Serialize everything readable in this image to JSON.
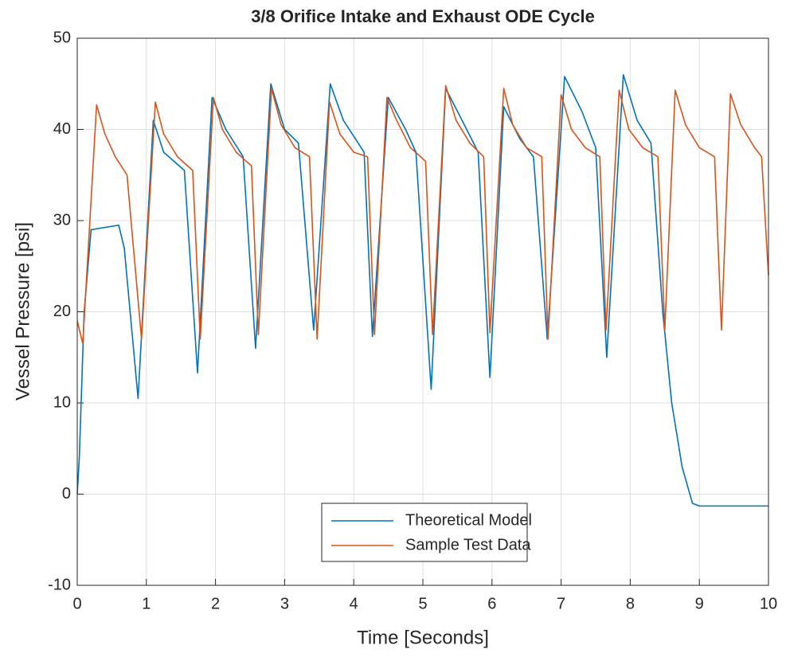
{
  "chart_data": {
    "type": "line",
    "title": "3/8 Orifice Intake and Exhaust ODE Cycle",
    "xlabel": "Time [Seconds]",
    "ylabel": "Vessel Pressure [psi]",
    "xlim": [
      0,
      10
    ],
    "xticks": [
      0,
      1,
      2,
      3,
      4,
      5,
      6,
      7,
      8,
      9,
      10
    ],
    "ylim": [
      -10,
      50
    ],
    "yticks": [
      -10,
      0,
      10,
      20,
      30,
      40,
      50
    ],
    "grid": true,
    "legend": "south",
    "series": [
      {
        "name": "Theoretical Model",
        "color": "#0072bd",
        "x": [
          0,
          0.03,
          0.1,
          0.2,
          0.6,
          0.68,
          0.88,
          1.1,
          1.25,
          1.55,
          1.74,
          1.95,
          2.15,
          2.4,
          2.58,
          2.8,
          3.0,
          3.2,
          3.42,
          3.66,
          3.85,
          4.15,
          4.27,
          4.5,
          4.75,
          4.9,
          5.12,
          5.33,
          5.6,
          5.8,
          5.97,
          6.17,
          6.4,
          6.6,
          6.8,
          7.05,
          7.3,
          7.5,
          7.66,
          7.9,
          8.1,
          8.3,
          8.47,
          8.6,
          8.75,
          8.9,
          9.0,
          10
        ],
        "values": [
          0,
          4,
          20,
          29,
          29.5,
          27,
          10.5,
          41,
          37.5,
          35.5,
          13.3,
          43.5,
          40,
          37,
          16,
          45,
          40,
          38.5,
          18,
          45,
          41,
          37.5,
          17.3,
          43.5,
          40,
          37.5,
          11.5,
          44.5,
          40.5,
          37.5,
          12.8,
          42.5,
          39,
          37,
          17,
          45.8,
          42,
          38,
          15,
          46,
          41,
          38.5,
          20,
          10,
          3,
          -1,
          -1.3,
          -1.3
        ]
      },
      {
        "name": "Sample Test Data",
        "color": "#d95319",
        "x": [
          0,
          0.08,
          0.28,
          0.4,
          0.55,
          0.72,
          0.93,
          1.13,
          1.25,
          1.45,
          1.67,
          1.78,
          1.97,
          2.1,
          2.3,
          2.52,
          2.62,
          2.81,
          2.95,
          3.15,
          3.36,
          3.47,
          3.65,
          3.8,
          4.0,
          4.2,
          4.3,
          4.48,
          4.62,
          4.82,
          5.04,
          5.14,
          5.33,
          5.48,
          5.68,
          5.88,
          5.97,
          6.17,
          6.3,
          6.5,
          6.72,
          6.81,
          7.0,
          7.15,
          7.35,
          7.56,
          7.65,
          7.84,
          7.98,
          8.18,
          8.4,
          8.5,
          8.65,
          8.8,
          9.0,
          9.22,
          9.32,
          9.45,
          9.6,
          9.8,
          9.9,
          10
        ],
        "values": [
          19,
          16.5,
          42.7,
          39.5,
          37,
          35,
          17,
          43,
          39.5,
          37,
          35.5,
          17,
          43.5,
          40,
          37.5,
          36,
          17.5,
          44.5,
          40.5,
          38,
          37,
          17,
          43,
          39.5,
          37.5,
          37,
          17.5,
          43.5,
          41,
          38,
          36.5,
          17.5,
          44.8,
          41,
          38.5,
          37,
          17.7,
          44.5,
          40.5,
          38,
          37,
          17,
          43.8,
          40,
          38,
          37,
          18,
          44.3,
          40,
          38,
          37,
          18,
          44.3,
          40.5,
          38,
          37,
          18,
          43.9,
          40.5,
          38,
          37,
          24
        ]
      }
    ]
  }
}
